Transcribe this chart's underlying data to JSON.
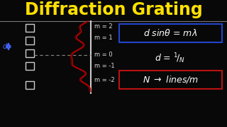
{
  "title": "Diffraction Grating",
  "title_color": "#FFE000",
  "bg_color": "#080808",
  "formula1": "d sinθ = mλ",
  "formula2": "d = 1/N",
  "formula3": "N → lines/m",
  "box1_color": "#2244CC",
  "box2_color": "#BB1111",
  "labels": [
    "m = 2",
    "m = 1",
    "m = 0",
    "m = -1",
    "m = -2"
  ],
  "label_color": "#DDDDDD",
  "wave_color": "#CC0000",
  "grating_color": "#CCCCCC",
  "arrow_color": "#4466FF",
  "slit_color": "#CCCCCC",
  "divider_color": "#999999"
}
